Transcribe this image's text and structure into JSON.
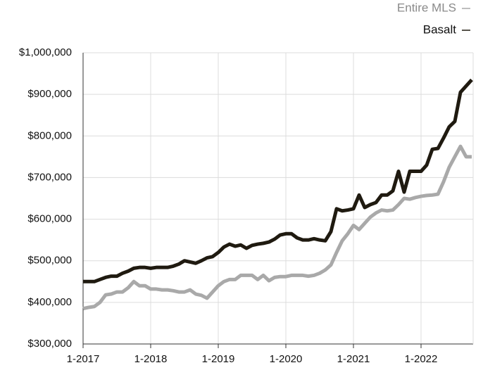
{
  "chart_data": {
    "type": "line",
    "categories": [
      "1-2017",
      null,
      null,
      null,
      null,
      null,
      null,
      null,
      null,
      null,
      null,
      null,
      "1-2018",
      null,
      null,
      null,
      null,
      null,
      null,
      null,
      null,
      null,
      null,
      null,
      "1-2019",
      null,
      null,
      null,
      null,
      null,
      null,
      null,
      null,
      null,
      null,
      null,
      "1-2020",
      null,
      null,
      null,
      null,
      null,
      null,
      null,
      null,
      null,
      null,
      null,
      "1-2021",
      null,
      null,
      null,
      null,
      null,
      null,
      null,
      null,
      null,
      null,
      null,
      "1-2022",
      null,
      null,
      null,
      null,
      null,
      null,
      null,
      null,
      null
    ],
    "series": [
      {
        "name": "Entire MLS",
        "color": "#a9a9a9",
        "values": [
          385000,
          388000,
          390000,
          400000,
          418000,
          420000,
          425000,
          425000,
          435000,
          450000,
          440000,
          440000,
          432000,
          432000,
          430000,
          430000,
          428000,
          425000,
          425000,
          430000,
          420000,
          417000,
          410000,
          425000,
          440000,
          450000,
          455000,
          455000,
          465000,
          465000,
          465000,
          455000,
          465000,
          452000,
          460000,
          462000,
          462000,
          465000,
          465000,
          465000,
          463000,
          465000,
          470000,
          478000,
          490000,
          520000,
          548000,
          565000,
          585000,
          575000,
          590000,
          605000,
          615000,
          622000,
          620000,
          622000,
          635000,
          650000,
          648000,
          652000,
          655000,
          657000,
          658000,
          660000,
          690000,
          725000,
          750000,
          775000,
          750000,
          750000
        ]
      },
      {
        "name": "Basalt",
        "color": "#1f1a10",
        "values": [
          450000,
          450000,
          450000,
          455000,
          460000,
          463000,
          463000,
          470000,
          475000,
          482000,
          484000,
          484000,
          482000,
          484000,
          484000,
          484000,
          487000,
          492000,
          500000,
          497000,
          494000,
          500000,
          507000,
          510000,
          520000,
          533000,
          540000,
          535000,
          538000,
          530000,
          537000,
          540000,
          542000,
          545000,
          552000,
          562000,
          565000,
          565000,
          555000,
          550000,
          550000,
          553000,
          550000,
          548000,
          570000,
          625000,
          620000,
          622000,
          625000,
          658000,
          628000,
          635000,
          640000,
          658000,
          658000,
          668000,
          715000,
          665000,
          715000,
          715000,
          715000,
          730000,
          768000,
          770000,
          795000,
          822000,
          835000,
          905000,
          920000,
          935000
        ]
      }
    ],
    "ylim": [
      300000,
      1000000
    ],
    "yticks": [
      {
        "value": 300000,
        "label": "$300,000"
      },
      {
        "value": 400000,
        "label": "$400,000"
      },
      {
        "value": 500000,
        "label": "$500,000"
      },
      {
        "value": 600000,
        "label": "$600,000"
      },
      {
        "value": 700000,
        "label": "$700,000"
      },
      {
        "value": 800000,
        "label": "$800,000"
      },
      {
        "value": 900000,
        "label": "$900,000"
      },
      {
        "value": 1000000,
        "label": "$1,000,000"
      }
    ],
    "grid": true,
    "legend": "top-right"
  }
}
